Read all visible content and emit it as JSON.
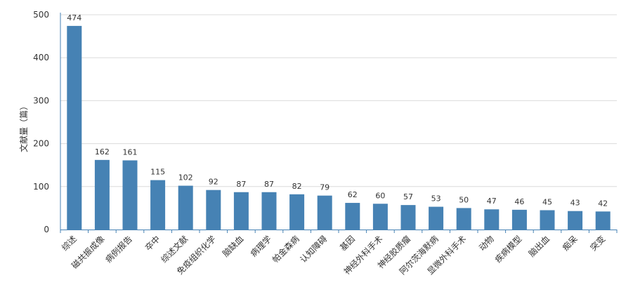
{
  "chart_data": {
    "type": "bar",
    "title": "",
    "xlabel": "",
    "ylabel": "文献量（篇）",
    "ylim": [
      0,
      500
    ],
    "yticks": [
      0,
      100,
      200,
      300,
      400,
      500
    ],
    "grid": true,
    "bar_color": "#4682b4",
    "categories": [
      "综述",
      "磁共振成像",
      "病例报告",
      "卒中",
      "综述文献",
      "免疫组织化学",
      "脑缺血",
      "病理学",
      "帕金森病",
      "认知障碍",
      "基因",
      "神经外科手术",
      "神经胶质瘤",
      "阿尔茨海默病",
      "显微外科手术",
      "动物",
      "疾病模型",
      "脑出血",
      "痴呆",
      "突变"
    ],
    "values": [
      474,
      162,
      161,
      115,
      102,
      92,
      87,
      87,
      82,
      79,
      62,
      60,
      57,
      53,
      50,
      47,
      46,
      45,
      43,
      42
    ]
  }
}
